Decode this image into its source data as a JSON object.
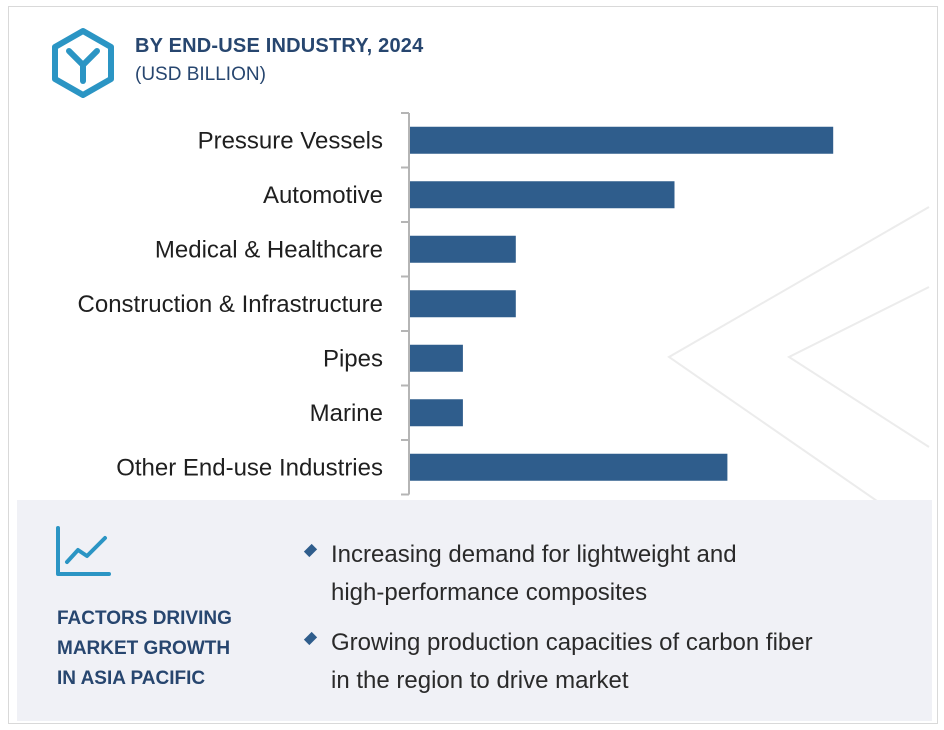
{
  "header": {
    "title": "BY END-USE INDUSTRY, 2024",
    "subtitle": "(USD BILLION)",
    "logo_icon": "hexagon-y-logo-icon"
  },
  "chart_data": {
    "type": "bar",
    "orientation": "horizontal",
    "title": "BY END-USE INDUSTRY, 2024",
    "subtitle": "(USD BILLION)",
    "categories": [
      "Pressure Vessels",
      "Automotive",
      "Medical & Healthcare",
      "Construction & Infrastructure",
      "Pipes",
      "Marine",
      "Other End-use Industries"
    ],
    "values": [
      8.0,
      5.0,
      2.0,
      2.0,
      1.0,
      1.0,
      6.0
    ],
    "xlim": [
      0,
      10
    ],
    "grid": false,
    "bar_color": "#2f5d8c"
  },
  "panel": {
    "title_lines": [
      "FACTORS DRIVING",
      "MARKET GROWTH",
      "IN ASIA PACIFIC"
    ],
    "icon": "trend-line-chart-icon",
    "bullets": [
      {
        "lines": [
          "Increasing demand for lightweight and",
          "high-performance composites"
        ]
      },
      {
        "lines": [
          "Growing production capacities of carbon fiber",
          "in the region to drive market"
        ]
      }
    ]
  },
  "colors": {
    "brand": "#27466f",
    "bar": "#2f5d8c",
    "logo": "#2b95c4",
    "panel_bg": "#f0f1f6"
  }
}
